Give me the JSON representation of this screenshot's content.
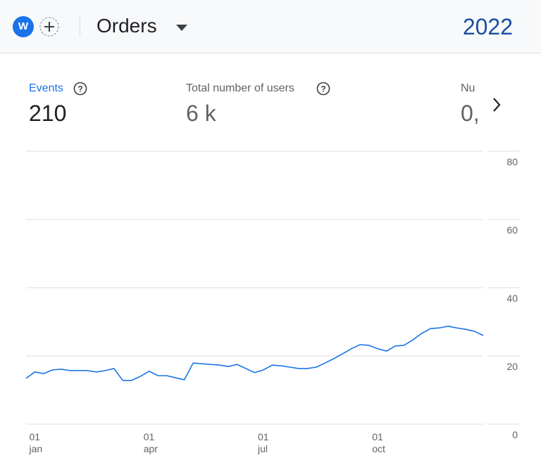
{
  "header": {
    "avatar": "W",
    "title": "Orders",
    "year": "2022"
  },
  "metrics": [
    {
      "label": "Events",
      "value": "210"
    },
    {
      "label": "Total number of users",
      "value": "6 k"
    },
    {
      "label": "Nu",
      "value": "0,"
    }
  ],
  "chart_data": {
    "type": "line",
    "categories": [
      null,
      [
        "01",
        "jan"
      ],
      null,
      null,
      null,
      null,
      null,
      null,
      null,
      null,
      null,
      null,
      null,
      null,
      [
        "01",
        "apr"
      ],
      null,
      null,
      null,
      null,
      null,
      null,
      null,
      null,
      null,
      null,
      null,
      null,
      [
        "01",
        "jul"
      ],
      null,
      null,
      null,
      null,
      null,
      null,
      null,
      null,
      null,
      null,
      null,
      null,
      [
        "01",
        "oct"
      ],
      null,
      null,
      null,
      null,
      null,
      null,
      null,
      null,
      null,
      null,
      null,
      null
    ],
    "values": [
      13.4,
      15.3,
      14.8,
      15.9,
      16.1,
      15.7,
      15.7,
      15.7,
      15.3,
      15.7,
      16.3,
      12.8,
      12.8,
      14.0,
      15.5,
      14.2,
      14.2,
      13.6,
      13.0,
      17.9,
      17.7,
      17.5,
      17.3,
      16.9,
      17.5,
      16.3,
      15.1,
      15.9,
      17.3,
      17.1,
      16.7,
      16.3,
      16.3,
      16.7,
      17.9,
      19.2,
      20.6,
      22.1,
      23.3,
      23.1,
      22.1,
      21.4,
      22.9,
      23.1,
      24.7,
      26.6,
      28.0,
      28.2,
      28.7,
      28.2,
      27.8,
      27.2,
      26.0
    ],
    "color": "#1a73e8",
    "ylim": [
      0,
      80
    ],
    "yticks": [
      0,
      20,
      40,
      60,
      80
    ],
    "grid": true
  }
}
